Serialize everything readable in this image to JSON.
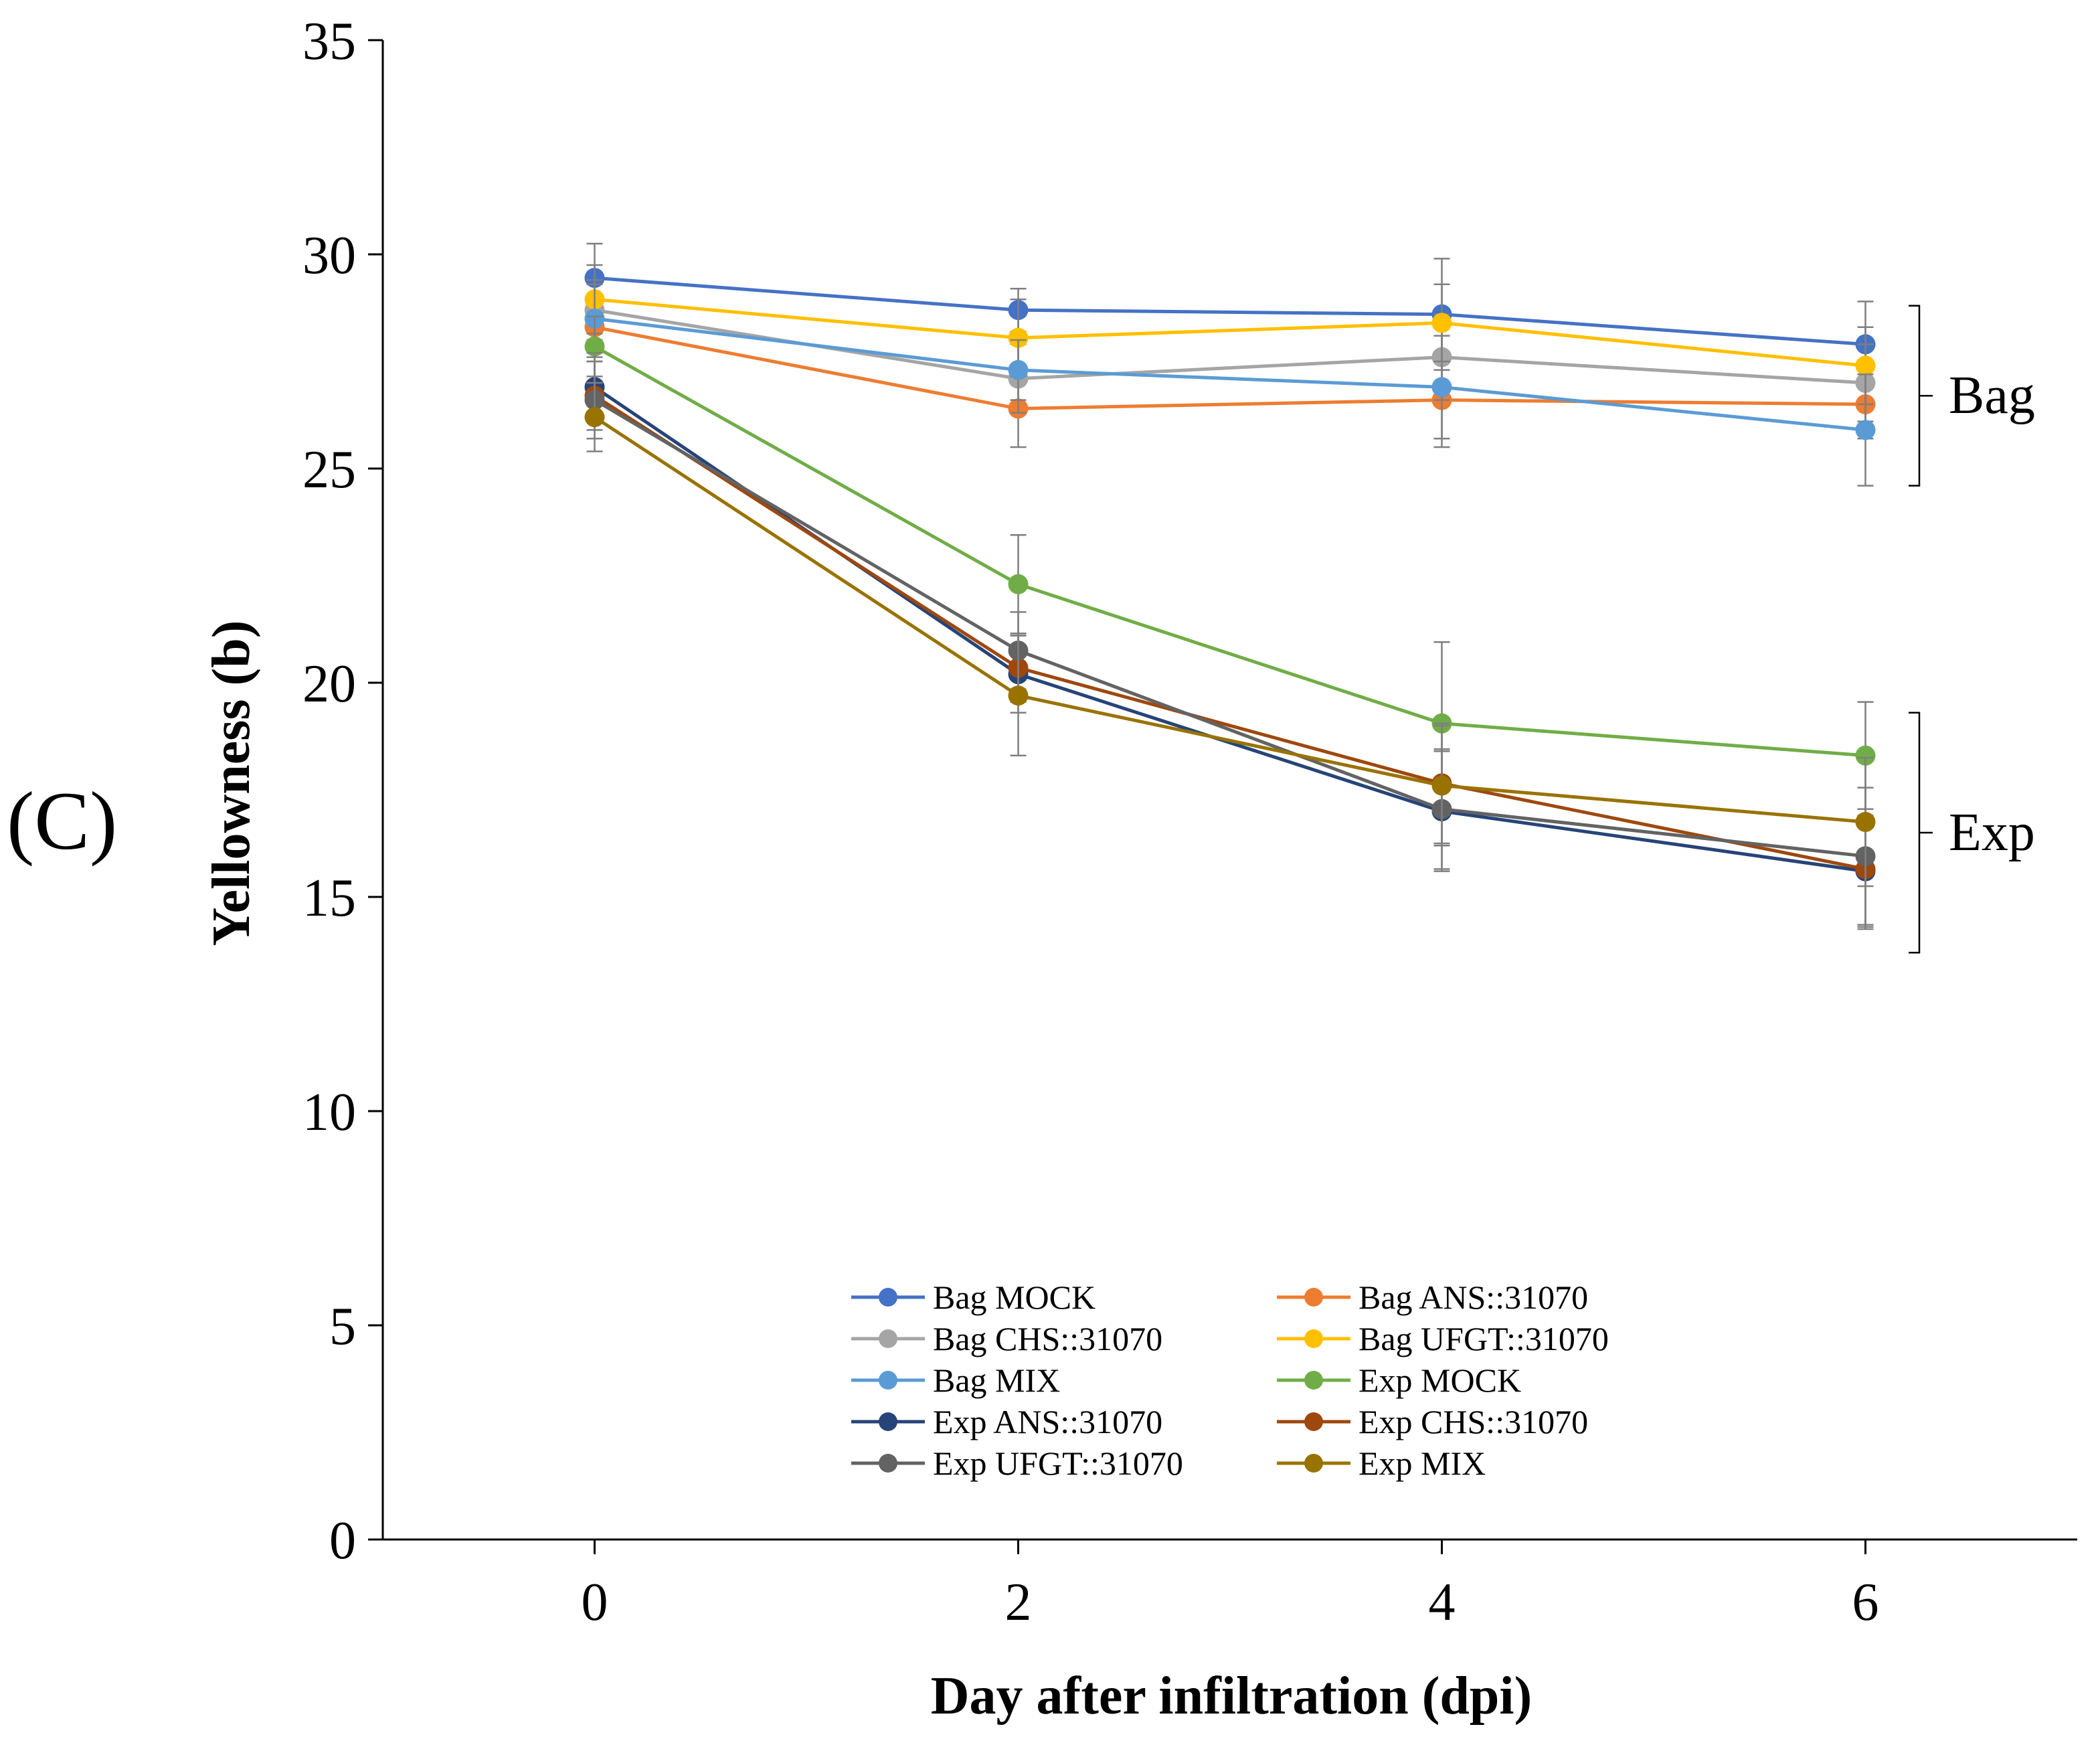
{
  "panel_label": "(C)",
  "chart_data": {
    "type": "line",
    "title": "",
    "xlabel": "Day after infiltration (dpi)",
    "ylabel": "Yellowness (b)",
    "x": [
      0,
      2,
      4,
      6
    ],
    "xlim": [
      -1,
      7
    ],
    "ylim": [
      0,
      35
    ],
    "xticks": [
      "0",
      "2",
      "4",
      "6"
    ],
    "yticks": [
      "0",
      "5",
      "10",
      "15",
      "20",
      "25",
      "30",
      "35"
    ],
    "grid": false,
    "legend_position": "bottom-center",
    "series": [
      {
        "name": "Bag MOCK",
        "color": "#4472C4",
        "values": [
          29.45,
          28.7,
          28.6,
          27.9
        ],
        "errors": [
          0.8,
          0.5,
          1.3,
          1.0
        ]
      },
      {
        "name": "Bag ANS::31070",
        "color": "#ED7D31",
        "values": [
          28.3,
          26.4,
          26.6,
          26.5
        ],
        "errors": [
          0.7,
          0.9,
          1.1,
          0.8
        ]
      },
      {
        "name": "Bag CHS::31070",
        "color": "#A5A5A5",
        "values": [
          28.7,
          27.1,
          27.6,
          27.0
        ],
        "errors": [
          0.7,
          0.8,
          1.0,
          0.9
        ]
      },
      {
        "name": "Bag UFGT::31070",
        "color": "#FFC000",
        "values": [
          28.95,
          28.05,
          28.4,
          27.4
        ],
        "errors": [
          0.8,
          0.9,
          0.9,
          0.9
        ]
      },
      {
        "name": "Bag MIX",
        "color": "#5B9BD5",
        "values": [
          28.5,
          27.3,
          26.9,
          25.9
        ],
        "errors": [
          0.8,
          0.7,
          1.2,
          1.3
        ]
      },
      {
        "name": "Exp MOCK",
        "color": "#70AD47",
        "values": [
          27.85,
          22.3,
          19.05,
          18.3
        ],
        "errors": [
          0.7,
          1.15,
          1.9,
          1.25
        ]
      },
      {
        "name": "Exp ANS::31070",
        "color": "#264478",
        "values": [
          26.9,
          20.2,
          17.0,
          15.6
        ],
        "errors": [
          0.8,
          0.9,
          1.4,
          1.3
        ]
      },
      {
        "name": "Exp CHS::31070",
        "color": "#9E480E",
        "values": [
          26.7,
          20.35,
          17.65,
          15.65
        ],
        "errors": [
          0.8,
          0.8,
          1.4,
          1.4
        ]
      },
      {
        "name": "Exp UFGT::31070",
        "color": "#636363",
        "values": [
          26.6,
          20.75,
          17.05,
          15.95
        ],
        "errors": [
          0.9,
          0.9,
          1.4,
          1.6
        ]
      },
      {
        "name": "Exp MIX",
        "color": "#997300",
        "values": [
          26.2,
          19.7,
          17.6,
          16.75
        ],
        "errors": [
          0.8,
          1.4,
          1.4,
          1.5
        ]
      }
    ],
    "annotations": [
      {
        "label": "Bag",
        "y_range": [
          24.6,
          28.8
        ]
      },
      {
        "label": "Exp",
        "y_range": [
          13.7,
          19.3
        ]
      }
    ]
  }
}
